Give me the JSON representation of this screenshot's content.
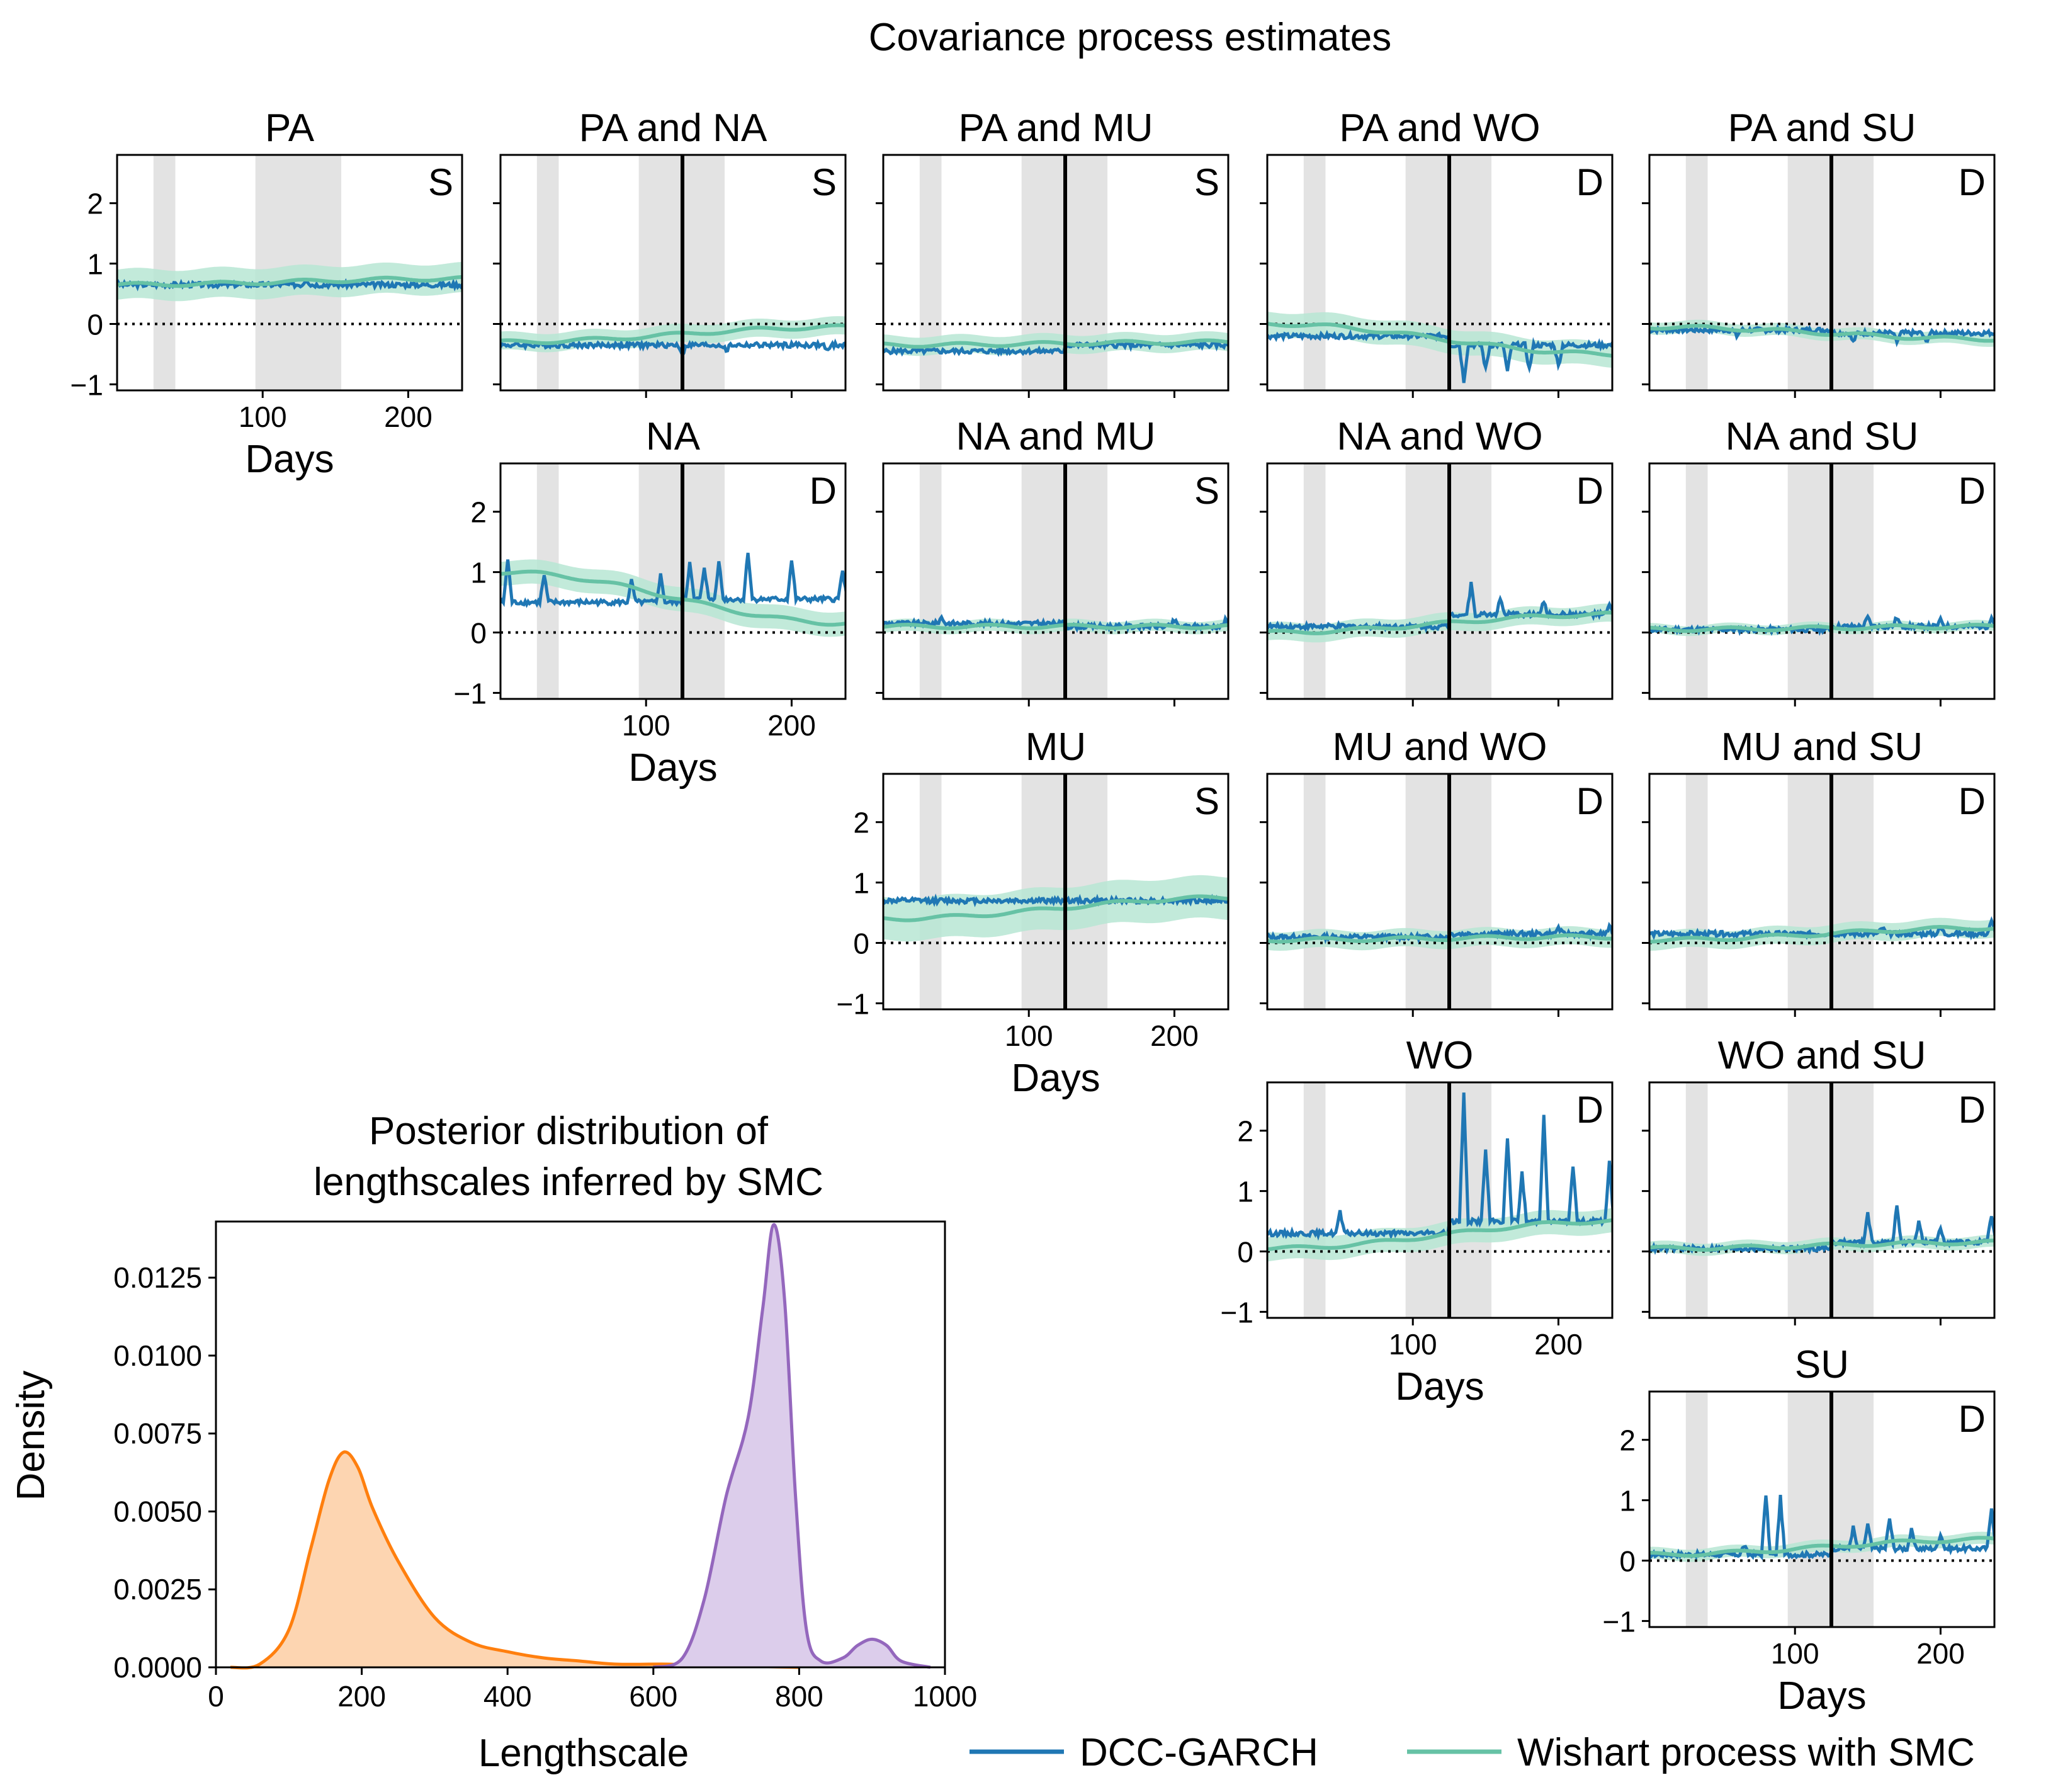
{
  "figure": {
    "title": "Covariance process estimates",
    "colors": {
      "dcc": "#1f77b4",
      "wishart": "#66c2a5",
      "wishart_band": "#b7e6d4",
      "shade": "#e3e3e3",
      "orange": "#ff7f0e",
      "orange_fill": "#fdd5b1",
      "purple": "#9467bd",
      "purple_fill": "#dccdeb"
    }
  },
  "legend": {
    "items": [
      {
        "label": "DCC-GARCH",
        "color": "#1f77b4"
      },
      {
        "label": "Wishart process with SMC",
        "color": "#66c2a5"
      }
    ]
  },
  "chart_data": [
    {
      "type": "line-grid",
      "title": "Covariance process estimates",
      "x_label": "Days",
      "x_range": [
        0,
        237
      ],
      "x_ticks": [
        100,
        200
      ],
      "y_range": [
        -1.1,
        2.8
      ],
      "y_ticks": [
        -1,
        0,
        1,
        2
      ],
      "y_tick_labels": [
        "−1",
        "0",
        "1",
        "2"
      ],
      "shaded_intervals": [
        [
          25,
          40
        ],
        [
          95,
          154
        ]
      ],
      "change_point_day": 125,
      "zero_reference": 0,
      "series_names": [
        "DCC-GARCH",
        "Wishart process with SMC"
      ],
      "panels": [
        {
          "row": 0,
          "col": 0,
          "title": "PA",
          "label": "S",
          "dcc_base": 0.65,
          "dcc_base2": 0.65,
          "wishart_start": 0.65,
          "wishart_end": 0.75,
          "band": 0.25,
          "spikes": [
            [
              130,
              0.1
            ]
          ]
        },
        {
          "row": 0,
          "col": 1,
          "title": "PA and NA",
          "label": "S",
          "dcc_base": -0.35,
          "dcc_base2": -0.35,
          "wishart_start": -0.3,
          "wishart_end": -0.05,
          "band": 0.15,
          "spikes": [
            [
              125,
              -0.15
            ],
            [
              155,
              -0.1
            ],
            [
              225,
              -0.1
            ]
          ]
        },
        {
          "row": 0,
          "col": 2,
          "title": "PA and MU",
          "label": "S",
          "dcc_base": -0.45,
          "dcc_base2": -0.35,
          "wishart_start": -0.35,
          "wishart_end": -0.3,
          "band": 0.15,
          "spikes": []
        },
        {
          "row": 0,
          "col": 3,
          "title": "PA and WO",
          "label": "D",
          "dcc_base": -0.2,
          "dcc_base2": -0.35,
          "wishart_start": 0.0,
          "wishart_end": -0.5,
          "band": 0.2,
          "spikes": [
            [
              135,
              -0.6
            ],
            [
              150,
              -0.4
            ],
            [
              165,
              -0.45
            ],
            [
              180,
              -0.4
            ],
            [
              200,
              -0.35
            ]
          ]
        },
        {
          "row": 0,
          "col": 4,
          "title": "PA and SU",
          "label": "D",
          "dcc_base": -0.1,
          "dcc_base2": -0.15,
          "wishart_start": -0.05,
          "wishart_end": -0.25,
          "band": 0.1,
          "spikes": [
            [
              60,
              -0.1
            ],
            [
              140,
              -0.15
            ],
            [
              170,
              -0.15
            ],
            [
              190,
              -0.15
            ]
          ]
        },
        {
          "row": 1,
          "col": 1,
          "title": "NA",
          "label": "D",
          "dcc_base": 0.5,
          "dcc_base2": 0.55,
          "wishart_start": 1.0,
          "wishart_end": 0.15,
          "band": 0.2,
          "spikes": [
            [
              5,
              0.7
            ],
            [
              30,
              0.45
            ],
            [
              90,
              0.35
            ],
            [
              110,
              0.45
            ],
            [
              130,
              0.6
            ],
            [
              140,
              0.55
            ],
            [
              150,
              0.65
            ],
            [
              170,
              0.8
            ],
            [
              200,
              0.65
            ],
            [
              235,
              0.5
            ]
          ]
        },
        {
          "row": 1,
          "col": 2,
          "title": "NA and MU",
          "label": "S",
          "dcc_base": 0.15,
          "dcc_base2": 0.1,
          "wishart_start": 0.1,
          "wishart_end": 0.1,
          "band": 0.1,
          "spikes": [
            [
              40,
              0.1
            ],
            [
              200,
              0.1
            ],
            [
              235,
              0.1
            ]
          ]
        },
        {
          "row": 1,
          "col": 3,
          "title": "NA and WO",
          "label": "D",
          "dcc_base": 0.1,
          "dcc_base2": 0.3,
          "wishart_start": 0.0,
          "wishart_end": 0.3,
          "band": 0.15,
          "spikes": [
            [
              140,
              0.5
            ],
            [
              160,
              0.25
            ],
            [
              190,
              0.2
            ],
            [
              235,
              0.15
            ]
          ]
        },
        {
          "row": 1,
          "col": 4,
          "title": "NA and SU",
          "label": "D",
          "dcc_base": 0.05,
          "dcc_base2": 0.1,
          "wishart_start": 0.05,
          "wishart_end": 0.1,
          "band": 0.08,
          "spikes": [
            [
              150,
              0.15
            ],
            [
              170,
              0.15
            ],
            [
              200,
              0.1
            ],
            [
              235,
              0.15
            ]
          ]
        },
        {
          "row": 2,
          "col": 2,
          "title": "MU",
          "label": "S",
          "dcc_base": 0.7,
          "dcc_base2": 0.7,
          "wishart_start": 0.4,
          "wishart_end": 0.75,
          "band": 0.35,
          "spikes": []
        },
        {
          "row": 2,
          "col": 3,
          "title": "MU and WO",
          "label": "D",
          "dcc_base": 0.1,
          "dcc_base2": 0.15,
          "wishart_start": 0.05,
          "wishart_end": 0.1,
          "band": 0.15,
          "spikes": [
            [
              200,
              0.1
            ],
            [
              235,
              0.1
            ]
          ]
        },
        {
          "row": 2,
          "col": 4,
          "title": "MU and SU",
          "label": "D",
          "dcc_base": 0.15,
          "dcc_base2": 0.15,
          "wishart_start": 0.05,
          "wishart_end": 0.25,
          "band": 0.15,
          "spikes": [
            [
              160,
              0.1
            ],
            [
              200,
              0.1
            ],
            [
              235,
              0.2
            ]
          ]
        },
        {
          "row": 3,
          "col": 3,
          "title": "WO",
          "label": "D",
          "dcc_base": 0.3,
          "dcc_base2": 0.5,
          "wishart_start": 0.05,
          "wishart_end": 0.5,
          "band": 0.2,
          "spikes": [
            [
              50,
              0.35
            ],
            [
              135,
              2.1
            ],
            [
              150,
              1.2
            ],
            [
              165,
              1.4
            ],
            [
              175,
              0.8
            ],
            [
              190,
              1.8
            ],
            [
              210,
              0.9
            ],
            [
              235,
              1.0
            ]
          ]
        },
        {
          "row": 3,
          "col": 4,
          "title": "WO and SU",
          "label": "D",
          "dcc_base": 0.05,
          "dcc_base2": 0.15,
          "wishart_start": 0.05,
          "wishart_end": 0.15,
          "band": 0.1,
          "spikes": [
            [
              150,
              0.5
            ],
            [
              170,
              0.6
            ],
            [
              185,
              0.35
            ],
            [
              200,
              0.25
            ],
            [
              235,
              0.45
            ]
          ]
        },
        {
          "row": 4,
          "col": 4,
          "title": "SU",
          "label": "D",
          "dcc_base": 0.1,
          "dcc_base2": 0.2,
          "wishart_start": 0.1,
          "wishart_end": 0.35,
          "band": 0.1,
          "spikes": [
            [
              65,
              0.15
            ],
            [
              80,
              1.0
            ],
            [
              90,
              0.95
            ],
            [
              140,
              0.35
            ],
            [
              150,
              0.4
            ],
            [
              165,
              0.5
            ],
            [
              180,
              0.3
            ],
            [
              200,
              0.25
            ],
            [
              235,
              0.7
            ]
          ]
        }
      ]
    },
    {
      "type": "area",
      "title": "Posterior distribution of lengthscales inferred by SMC",
      "xlabel": "Lengthscale",
      "ylabel": "Density",
      "x_range": [
        0,
        1000
      ],
      "x_ticks": [
        0,
        200,
        400,
        600,
        800,
        1000
      ],
      "y_range": [
        0,
        0.0143
      ],
      "y_ticks": [
        0.0,
        0.0025,
        0.005,
        0.0075,
        0.01,
        0.0125
      ],
      "y_tick_labels": [
        "0.0000",
        "0.0025",
        "0.0050",
        "0.0075",
        "0.0100",
        "0.0125"
      ],
      "series": [
        {
          "name": "orange",
          "points": [
            [
              20,
              0
            ],
            [
              60,
              0.0001
            ],
            [
              100,
              0.0012
            ],
            [
              130,
              0.0038
            ],
            [
              155,
              0.006
            ],
            [
              175,
              0.0069
            ],
            [
              195,
              0.0064
            ],
            [
              215,
              0.0051
            ],
            [
              250,
              0.0034
            ],
            [
              300,
              0.0016
            ],
            [
              350,
              0.0008
            ],
            [
              400,
              0.0005
            ],
            [
              450,
              0.0003
            ],
            [
              500,
              0.0002
            ],
            [
              550,
              0.0001
            ],
            [
              620,
              0.0001
            ],
            [
              700,
              5e-05
            ],
            [
              800,
              0.0
            ]
          ]
        },
        {
          "name": "purple",
          "points": [
            [
              600,
              0
            ],
            [
              640,
              0.0003
            ],
            [
              670,
              0.0022
            ],
            [
              700,
              0.0055
            ],
            [
              730,
              0.008
            ],
            [
              750,
              0.0115
            ],
            [
              765,
              0.0142
            ],
            [
              780,
              0.0118
            ],
            [
              795,
              0.0055
            ],
            [
              810,
              0.0012
            ],
            [
              830,
              0.0002
            ],
            [
              860,
              0.0003
            ],
            [
              880,
              0.0007
            ],
            [
              900,
              0.0009
            ],
            [
              920,
              0.0007
            ],
            [
              940,
              0.0002
            ],
            [
              980,
              0.0
            ]
          ]
        }
      ]
    }
  ]
}
